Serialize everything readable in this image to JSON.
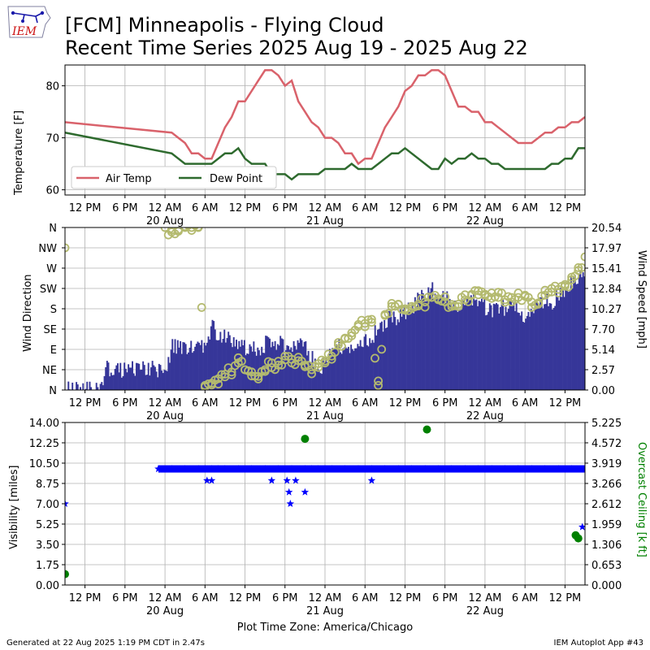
{
  "header": {
    "logo_text": "IEM",
    "title_line1": "[FCM] Minneapolis - Flying Cloud",
    "title_line2": "Recent Time Series 2025 Aug 19 - 2025 Aug 22"
  },
  "footer": {
    "generated": "Generated at 22 Aug 2025 1:19 PM CDT in 2.47s",
    "app": "IEM Autoplot App #43",
    "timezone": "Plot Time Zone: America/Chicago"
  },
  "colors": {
    "air_temp": "#d9626b",
    "dew_point": "#2e6a2e",
    "wind_speed": "#363699",
    "wind_dir": "#b4ba6f",
    "visibility": "#0000ff",
    "ceiling": "#008000"
  },
  "time_axis": {
    "start_hour": 0,
    "end_hour": 78,
    "tick_hours": [
      3,
      9,
      15,
      21,
      27,
      33,
      39,
      45,
      51,
      57,
      63,
      69,
      75
    ],
    "tick_labels": [
      "12 PM",
      "6 PM",
      "12 AM",
      "6 AM",
      "12 PM",
      "6 PM",
      "12 AM",
      "6 AM",
      "12 PM",
      "6 PM",
      "12 AM",
      "6 AM",
      "12 PM"
    ],
    "date_labels": [
      {
        "hour": 15,
        "label": "20 Aug"
      },
      {
        "hour": 39,
        "label": "21 Aug"
      },
      {
        "hour": 63,
        "label": "22 Aug"
      }
    ]
  },
  "chart_data": [
    {
      "type": "line",
      "ylabel": "Temperature [F]",
      "ylim": [
        59,
        84
      ],
      "yticks": [
        60,
        70,
        80
      ],
      "grid": true,
      "legend_placement": "lower-left",
      "series": [
        {
          "name": "Air Temp",
          "x": [
            0,
            16,
            17,
            18,
            19,
            20,
            21,
            22,
            23,
            24,
            25,
            26,
            27,
            28,
            29,
            30,
            31,
            32,
            33,
            34,
            35,
            36,
            37,
            38,
            39,
            40,
            41,
            42,
            43,
            44,
            45,
            46,
            47,
            48,
            49,
            50,
            51,
            52,
            53,
            54,
            55,
            56,
            57,
            58,
            59,
            60,
            61,
            62,
            63,
            64,
            65,
            66,
            67,
            68,
            69,
            70,
            71,
            72,
            73,
            74,
            75,
            76,
            77,
            78
          ],
          "values": [
            73,
            71,
            70,
            69,
            67,
            67,
            66,
            66,
            69,
            72,
            74,
            77,
            77,
            79,
            81,
            83,
            83,
            82,
            80,
            81,
            77,
            75,
            73,
            72,
            70,
            70,
            69,
            67,
            67,
            65,
            66,
            66,
            69,
            72,
            74,
            76,
            79,
            80,
            82,
            82,
            83,
            83,
            82,
            79,
            76,
            76,
            75,
            75,
            73,
            73,
            72,
            71,
            70,
            69,
            69,
            69,
            70,
            71,
            71,
            72,
            72,
            73,
            73,
            74
          ]
        },
        {
          "name": "Dew Point",
          "x": [
            0,
            16,
            17,
            18,
            19,
            20,
            21,
            22,
            23,
            24,
            25,
            26,
            27,
            28,
            29,
            30,
            31,
            32,
            33,
            34,
            35,
            36,
            37,
            38,
            39,
            40,
            41,
            42,
            43,
            44,
            45,
            46,
            47,
            48,
            49,
            50,
            51,
            52,
            53,
            54,
            55,
            56,
            57,
            58,
            59,
            60,
            61,
            62,
            63,
            64,
            65,
            66,
            67,
            68,
            69,
            70,
            71,
            72,
            73,
            74,
            75,
            76,
            77,
            78
          ],
          "values": [
            71,
            67,
            66,
            65,
            65,
            65,
            65,
            65,
            66,
            67,
            67,
            68,
            66,
            65,
            65,
            65,
            63,
            63,
            63,
            62,
            63,
            63,
            63,
            63,
            64,
            64,
            64,
            64,
            65,
            64,
            64,
            64,
            65,
            66,
            67,
            67,
            68,
            67,
            66,
            65,
            64,
            64,
            66,
            65,
            66,
            66,
            67,
            66,
            66,
            65,
            65,
            64,
            64,
            64,
            64,
            64,
            64,
            64,
            65,
            65,
            66,
            66,
            68,
            68
          ]
        }
      ]
    },
    {
      "type": "bar",
      "ylabel": "Wind Direction",
      "y2label": "Wind Speed [mph]",
      "dir_ticks": [
        "N",
        "NE",
        "E",
        "SE",
        "S",
        "SW",
        "W",
        "NW",
        "N"
      ],
      "speed_ticks": [
        "0.00",
        "2.57",
        "5.14",
        "7.70",
        "10.27",
        "12.84",
        "15.41",
        "17.97",
        "20.54"
      ],
      "speed_max": 20.54,
      "grid": true,
      "series": [
        {
          "name": "Wind Speed",
          "x": [
            0,
            5,
            6,
            7,
            10,
            13,
            15,
            16,
            17,
            18,
            19,
            20,
            21,
            22,
            23,
            24,
            25,
            26,
            27,
            28,
            29,
            30,
            31,
            32,
            33,
            34,
            35,
            36,
            37,
            38,
            39,
            40,
            41,
            42,
            43,
            44,
            45,
            46,
            47,
            48,
            49,
            50,
            51,
            52,
            53,
            54,
            55,
            56,
            57,
            58,
            59,
            60,
            61,
            62,
            63,
            64,
            65,
            66,
            67,
            68,
            69,
            70,
            71,
            72,
            73,
            74,
            75,
            76,
            77
          ],
          "values": [
            0,
            0,
            2.6,
            2.6,
            2.6,
            2.6,
            2.6,
            5.5,
            5.5,
            5.5,
            5.1,
            5.4,
            5.5,
            8.5,
            6.5,
            6.8,
            5.8,
            6.2,
            5.5,
            5.6,
            5.2,
            5.8,
            5.6,
            6.1,
            5.2,
            5.5,
            5.8,
            5.1,
            4.0,
            2.6,
            3.5,
            5.1,
            5.5,
            5.5,
            5.8,
            5.1,
            6.4,
            6.8,
            7.7,
            8.6,
            9.4,
            9.0,
            9.8,
            10.3,
            12.0,
            11.4,
            12.8,
            11.6,
            11.6,
            10.6,
            10.9,
            11.6,
            11.6,
            10.6,
            10.5,
            10.1,
            10.6,
            10.3,
            11.2,
            10.0,
            9.4,
            10.3,
            10.5,
            11.6,
            11.2,
            12.0,
            12.8,
            13.6,
            14.3
          ]
        },
        {
          "name": "Wind Direction",
          "x": [
            0,
            15,
            16,
            17,
            18,
            19,
            20,
            21,
            22,
            23,
            24,
            25,
            26,
            27,
            28,
            29,
            30,
            31,
            32,
            33,
            34,
            35,
            36,
            37,
            38,
            39,
            40,
            41,
            42,
            43,
            44,
            45,
            46,
            47,
            48,
            49,
            50,
            51,
            52,
            53,
            54,
            55,
            56,
            57,
            58,
            59,
            60,
            61,
            62,
            63,
            64,
            65,
            66,
            67,
            68,
            69,
            70,
            71,
            72,
            73,
            74,
            75,
            76,
            77,
            78
          ],
          "values": [
            315,
            360,
            350,
            355,
            360,
            360,
            360,
            10,
            15,
            25,
            35,
            40,
            60,
            45,
            40,
            30,
            45,
            60,
            55,
            75,
            60,
            65,
            55,
            45,
            50,
            60,
            75,
            100,
            115,
            120,
            145,
            140,
            150,
            10,
            165,
            185,
            190,
            180,
            185,
            190,
            195,
            205,
            200,
            195,
            185,
            190,
            200,
            210,
            220,
            210,
            215,
            205,
            200,
            205,
            205,
            210,
            195,
            190,
            210,
            225,
            215,
            230,
            250,
            265,
            295
          ]
        }
      ]
    },
    {
      "type": "scatter",
      "ylabel": "Visibility [miles]",
      "y2label": "Overcast Ceiling [k ft]",
      "ylim": [
        0,
        14
      ],
      "yticks": [
        "0.00",
        "1.75",
        "3.50",
        "5.25",
        "7.00",
        "8.75",
        "10.50",
        "12.25",
        "14.00"
      ],
      "y2ticks": [
        "0.000",
        "0.653",
        "1.306",
        "1.959",
        "2.612",
        "3.266",
        "3.919",
        "4.572",
        "5.225"
      ],
      "ceiling_max": 5.225,
      "grid": true,
      "series": [
        {
          "name": "Visibility",
          "x": [
            0,
            14,
            16,
            18,
            20,
            21,
            22,
            23,
            24,
            26,
            28,
            30,
            32,
            34,
            36,
            37,
            38,
            39,
            40,
            42,
            44,
            46,
            48,
            50,
            52,
            54,
            56,
            58,
            60,
            62,
            64,
            66,
            68,
            70,
            72,
            74,
            76,
            78,
            21.3,
            22.0,
            31.0,
            33.3,
            33.6,
            33.8,
            34.6,
            36.0,
            46.0,
            77.6
          ],
          "values": [
            7,
            10,
            10,
            10,
            10,
            10,
            10,
            10,
            10,
            10,
            10,
            10,
            10,
            10,
            10,
            10,
            10,
            10,
            10,
            10,
            10,
            10,
            10,
            10,
            10,
            10,
            10,
            10,
            10,
            10,
            10,
            10,
            10,
            10,
            10,
            10,
            10,
            10,
            9,
            9,
            9,
            9,
            8,
            7,
            9,
            8,
            9,
            5
          ]
        },
        {
          "name": "Overcast Ceiling",
          "x": [
            0,
            36.0,
            54.3,
            76.6,
            77.0
          ],
          "values": [
            0.35,
            4.7,
            5.0,
            1.6,
            1.5
          ]
        }
      ]
    }
  ]
}
